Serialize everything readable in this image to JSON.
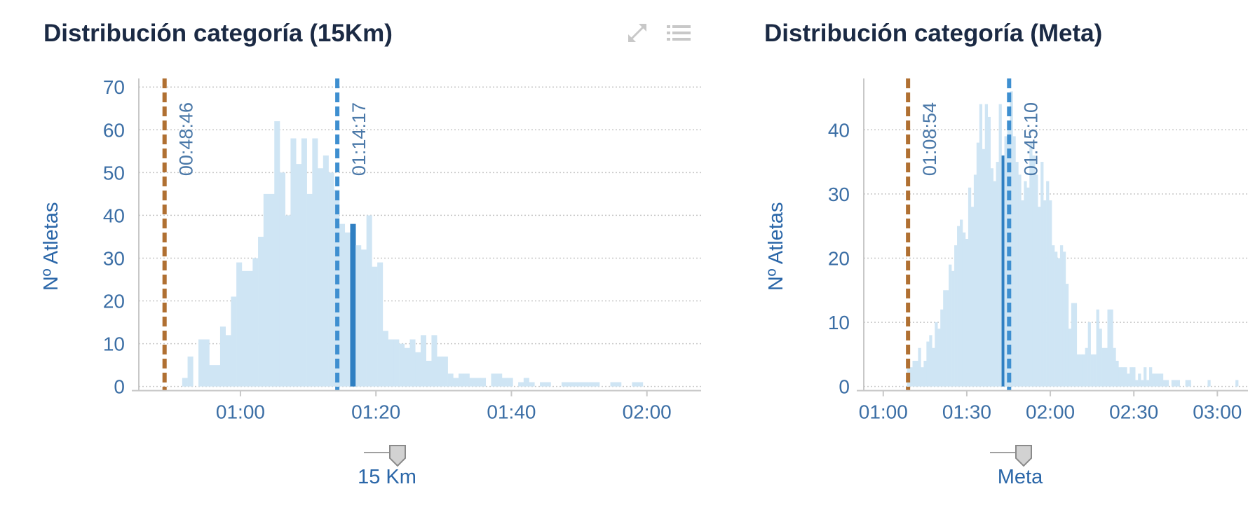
{
  "colors": {
    "bar": "#cfe5f4",
    "bar_highlight": "#2f7fc2",
    "grid": "#c7c7c7",
    "axis": "#c8c8c8",
    "tick_text": "#3b6ea5",
    "title": "#1b2a44",
    "plotline_min": "#b07032",
    "plotline_mean": "#3e8fd0"
  },
  "icons": {
    "expand": "expand-arrows-icon",
    "menu": "list-menu-icon"
  },
  "charts": [
    {
      "title": "Distribución categoría (15Km)",
      "chart_data": {
        "type": "bar",
        "title": "Distribución categoría (15Km)",
        "ylabel": "Nº Atletas",
        "xlabel": "15 Km",
        "x_unit": "minutes",
        "xlim": [
          45,
          128
        ],
        "ylim": [
          -3,
          72
        ],
        "yticks": [
          0,
          10,
          20,
          30,
          40,
          50,
          60,
          70
        ],
        "xticks": [
          {
            "value": 60,
            "label": "01:00"
          },
          {
            "value": 80,
            "label": "01:20"
          },
          {
            "value": 100,
            "label": "01:40"
          },
          {
            "value": 120,
            "label": "02:00"
          }
        ],
        "bin_width": 0.8,
        "x": [
          51.8,
          52.6,
          53.4,
          54.2,
          55.0,
          55.8,
          56.6,
          57.4,
          58.2,
          59.0,
          59.8,
          60.6,
          61.4,
          62.2,
          63.0,
          63.8,
          64.6,
          65.4,
          66.2,
          67.0,
          67.8,
          68.6,
          69.4,
          70.2,
          71.0,
          71.8,
          72.6,
          73.4,
          74.2,
          75.0,
          75.8,
          76.6,
          77.4,
          78.2,
          79.0,
          79.8,
          80.6,
          81.4,
          82.2,
          83.0,
          83.8,
          84.6,
          85.4,
          86.2,
          87.0,
          87.8,
          88.6,
          89.4,
          90.2,
          91.0,
          91.8,
          92.6,
          93.4,
          94.2,
          95.0,
          95.8,
          96.6,
          97.4,
          98.2,
          99.0,
          99.8,
          101.4,
          102.2,
          103.0,
          104.6,
          105.4,
          107.8,
          108.6,
          109.4,
          110.2,
          111.0,
          111.8,
          112.6,
          115.0,
          115.8,
          118.2,
          119.0
        ],
        "values": [
          2,
          7,
          0,
          11,
          11,
          5,
          5,
          14,
          12,
          21,
          29,
          27,
          27,
          30,
          35,
          45,
          45,
          62,
          50,
          40,
          58,
          52,
          58,
          45,
          58,
          51,
          54,
          50,
          46,
          38,
          36,
          38,
          33,
          32,
          40,
          28,
          29,
          13,
          11,
          11,
          10,
          9,
          11,
          8,
          12,
          6,
          12,
          7,
          7,
          3,
          2,
          3,
          3,
          2,
          2,
          2,
          0,
          3,
          3,
          2,
          2,
          1,
          2,
          1,
          1,
          1,
          1,
          1,
          1,
          1,
          1,
          1,
          1,
          1,
          1,
          1,
          1
        ],
        "highlight_x": 76.6,
        "plot_lines": [
          {
            "value": 48.8,
            "label": "00:48:46",
            "color": "#b07032"
          },
          {
            "value": 74.3,
            "label": "01:14:17",
            "color": "#3e8fd0"
          }
        ]
      }
    },
    {
      "title": "Distribución categoría (Meta)",
      "chart_data": {
        "type": "bar",
        "title": "Distribución categoría (Meta)",
        "ylabel": "Nº Atletas",
        "xlabel": "Meta",
        "x_unit": "minutes",
        "xlim": [
          53,
          191
        ],
        "ylim": [
          -2,
          48
        ],
        "yticks": [
          0,
          10,
          20,
          30,
          40
        ],
        "xticks": [
          {
            "value": 60,
            "label": "01:00"
          },
          {
            "value": 90,
            "label": "01:30"
          },
          {
            "value": 120,
            "label": "02:00"
          },
          {
            "value": 150,
            "label": "02:30"
          },
          {
            "value": 180,
            "label": "03:00"
          }
        ],
        "bin_width": 1.0,
        "x": [
          69,
          70,
          71,
          72,
          73,
          74,
          75,
          76,
          77,
          78,
          79,
          80,
          81,
          82,
          83,
          84,
          85,
          86,
          87,
          88,
          89,
          90,
          91,
          92,
          93,
          94,
          95,
          96,
          97,
          98,
          99,
          100,
          101,
          102,
          103,
          104,
          105,
          106,
          107,
          108,
          109,
          110,
          111,
          112,
          113,
          114,
          115,
          116,
          117,
          118,
          119,
          120,
          121,
          122,
          123,
          124,
          125,
          126,
          127,
          128,
          129,
          130,
          131,
          132,
          133,
          134,
          135,
          136,
          137,
          138,
          139,
          140,
          141,
          142,
          143,
          144,
          145,
          146,
          147,
          148,
          149,
          150,
          151,
          152,
          153,
          154,
          155,
          156,
          157,
          158,
          159,
          160,
          161,
          162,
          164,
          165,
          166,
          169,
          170,
          177,
          187
        ],
        "values": [
          3,
          3,
          4,
          4,
          6,
          3,
          4,
          7,
          8,
          6,
          10,
          9,
          12,
          15,
          15,
          19,
          18,
          22,
          25,
          26,
          24,
          23,
          31,
          28,
          33,
          38,
          44,
          37,
          44,
          42,
          34,
          32,
          35,
          44,
          36,
          39,
          40,
          46,
          39,
          35,
          33,
          29,
          32,
          31,
          38,
          36,
          33,
          28,
          35,
          29,
          32,
          29,
          22,
          21,
          20,
          22,
          21,
          16,
          9,
          13,
          13,
          5,
          5,
          5,
          6,
          10,
          5,
          5,
          12,
          9,
          6,
          6,
          12,
          12,
          6,
          4,
          3,
          3,
          3,
          2,
          3,
          3,
          1,
          2,
          1,
          3,
          1,
          3,
          2,
          2,
          2,
          2,
          1,
          1,
          1,
          1,
          1,
          1,
          1,
          1,
          1
        ],
        "highlight_x": 103,
        "plot_lines": [
          {
            "value": 68.9,
            "label": "01:08:54",
            "color": "#b07032"
          },
          {
            "value": 105.2,
            "label": "01:45:10",
            "color": "#3e8fd0"
          }
        ]
      }
    }
  ]
}
